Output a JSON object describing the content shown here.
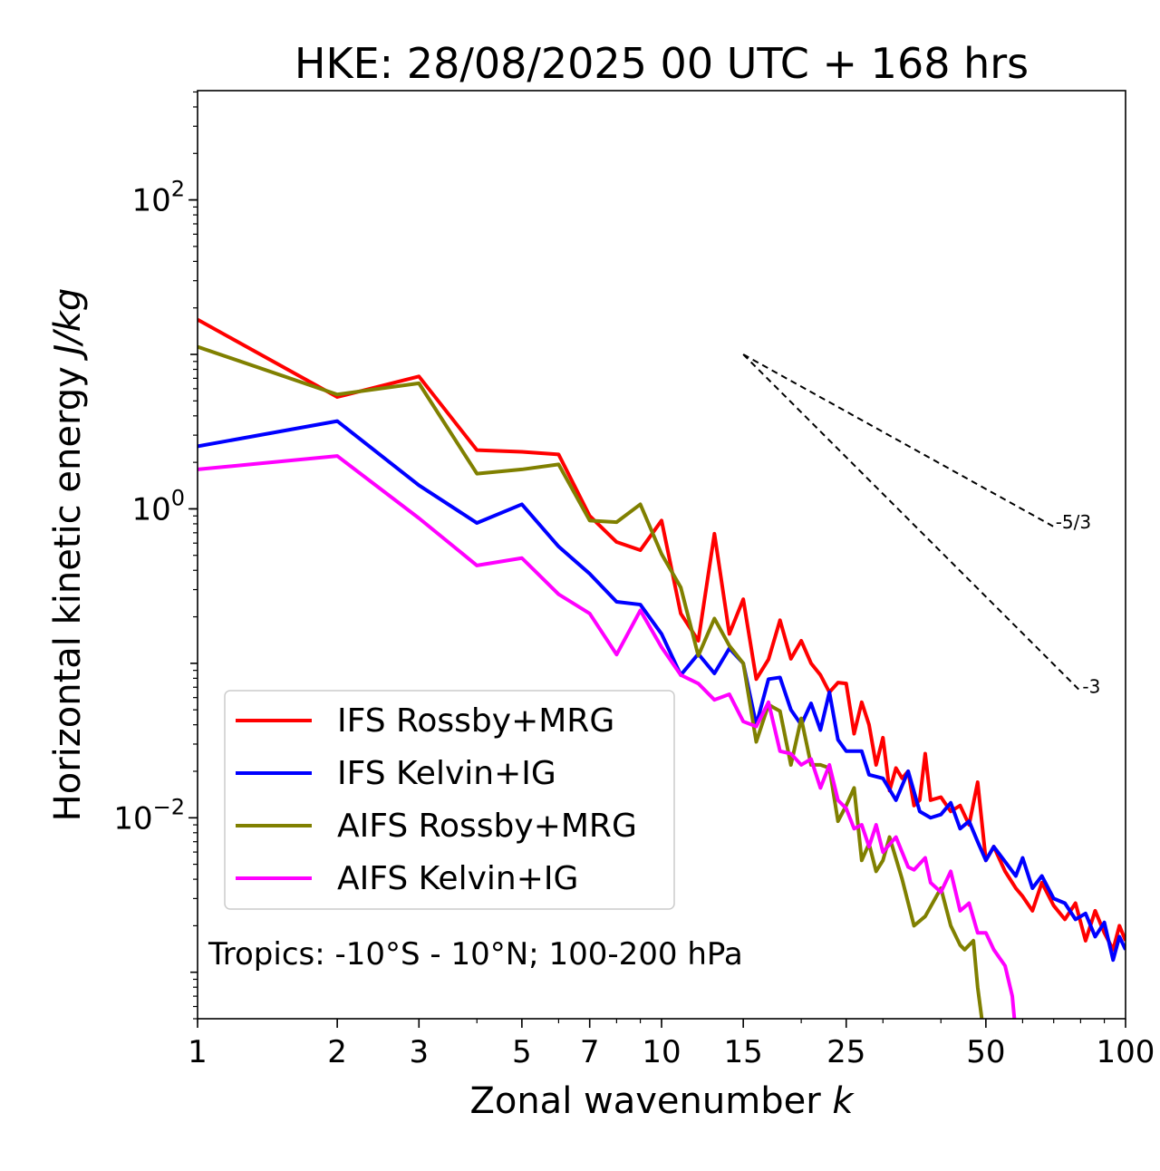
{
  "chart_data": {
    "type": "line",
    "title": "HKE: 28/08/2025 00 UTC + 168 hrs",
    "xlabel": "Zonal wavenumber",
    "xlabel_var": "k",
    "ylabel": "Horizontal kinetic energy",
    "ylabel_units": "J/kg",
    "xscale": "log",
    "yscale": "log",
    "xlim": [
      1,
      100
    ],
    "ylim": [
      0.0005,
      510
    ],
    "x_ticks": [
      1,
      2,
      3,
      5,
      7,
      10,
      15,
      25,
      50,
      100
    ],
    "x_tick_labels": [
      "1",
      "2",
      "3",
      "5",
      "7",
      "10",
      "15",
      "25",
      "50",
      "100"
    ],
    "y_ticks": [
      {
        "value": 100,
        "base": "10",
        "exp": "2"
      },
      {
        "value": 1,
        "base": "10",
        "exp": "0"
      },
      {
        "value": 0.01,
        "base": "10",
        "exp": "−2"
      }
    ],
    "legend_position": "lower-left",
    "annotation": "Tropics: -10°S - 10°N; 100-200 hPa",
    "series": [
      {
        "name": "IFS Rossby+MRG",
        "color": "#ff0000",
        "points": [
          [
            1,
            16.8
          ],
          [
            2,
            5.3
          ],
          [
            3,
            7.2
          ],
          [
            4,
            2.4
          ],
          [
            5,
            2.34
          ],
          [
            6,
            2.25
          ],
          [
            7,
            0.9
          ],
          [
            8,
            0.61
          ],
          [
            9,
            0.54
          ],
          [
            10,
            0.84
          ],
          [
            11,
            0.21
          ],
          [
            12,
            0.14
          ],
          [
            13,
            0.69
          ],
          [
            14,
            0.155
          ],
          [
            15,
            0.26
          ],
          [
            16,
            0.079
          ],
          [
            17,
            0.106
          ],
          [
            18,
            0.19
          ],
          [
            19,
            0.107
          ],
          [
            20,
            0.14
          ],
          [
            21,
            0.1
          ],
          [
            22,
            0.084
          ],
          [
            23,
            0.065
          ],
          [
            24,
            0.075
          ],
          [
            25,
            0.074
          ],
          [
            26,
            0.035
          ],
          [
            27,
            0.056
          ],
          [
            28,
            0.04
          ],
          [
            29,
            0.022
          ],
          [
            30,
            0.033
          ],
          [
            31,
            0.015
          ],
          [
            32,
            0.021
          ],
          [
            33,
            0.018
          ],
          [
            34,
            0.02
          ],
          [
            35,
            0.012
          ],
          [
            36,
            0.013
          ],
          [
            37,
            0.026
          ],
          [
            38,
            0.013
          ],
          [
            40,
            0.0136
          ],
          [
            42,
            0.011
          ],
          [
            44,
            0.012
          ],
          [
            46,
            0.009
          ],
          [
            48,
            0.017
          ],
          [
            50,
            0.0053
          ],
          [
            52,
            0.0065
          ],
          [
            55,
            0.0045
          ],
          [
            58,
            0.0035
          ],
          [
            60,
            0.0031
          ],
          [
            63,
            0.0025
          ],
          [
            66,
            0.0038
          ],
          [
            70,
            0.0027
          ],
          [
            74,
            0.0022
          ],
          [
            78,
            0.0028
          ],
          [
            82,
            0.0016
          ],
          [
            86,
            0.0025
          ],
          [
            90,
            0.0018
          ],
          [
            94,
            0.0014
          ],
          [
            97,
            0.002
          ],
          [
            100,
            0.0016
          ]
        ]
      },
      {
        "name": "IFS Kelvin+IG",
        "color": "#0000ff",
        "points": [
          [
            1,
            2.54
          ],
          [
            2,
            3.7
          ],
          [
            3,
            1.42
          ],
          [
            4,
            0.81
          ],
          [
            5,
            1.07
          ],
          [
            6,
            0.57
          ],
          [
            7,
            0.38
          ],
          [
            8,
            0.25
          ],
          [
            9,
            0.24
          ],
          [
            10,
            0.155
          ],
          [
            11,
            0.084
          ],
          [
            12,
            0.115
          ],
          [
            13,
            0.086
          ],
          [
            14,
            0.125
          ],
          [
            15,
            0.1
          ],
          [
            16,
            0.04
          ],
          [
            17,
            0.079
          ],
          [
            18,
            0.081
          ],
          [
            19,
            0.05
          ],
          [
            20,
            0.04
          ],
          [
            21,
            0.055
          ],
          [
            22,
            0.037
          ],
          [
            23,
            0.065
          ],
          [
            24,
            0.032
          ],
          [
            25,
            0.027
          ],
          [
            27,
            0.027
          ],
          [
            28,
            0.019
          ],
          [
            30,
            0.018
          ],
          [
            32,
            0.013
          ],
          [
            34,
            0.02
          ],
          [
            36,
            0.011
          ],
          [
            38,
            0.01
          ],
          [
            40,
            0.0105
          ],
          [
            42,
            0.0125
          ],
          [
            44,
            0.0085
          ],
          [
            46,
            0.0095
          ],
          [
            48,
            0.007
          ],
          [
            50,
            0.0053
          ],
          [
            52,
            0.0065
          ],
          [
            55,
            0.0052
          ],
          [
            58,
            0.0042
          ],
          [
            60,
            0.0055
          ],
          [
            63,
            0.0035
          ],
          [
            66,
            0.0042
          ],
          [
            70,
            0.003
          ],
          [
            74,
            0.0028
          ],
          [
            78,
            0.0022
          ],
          [
            82,
            0.0024
          ],
          [
            86,
            0.0017
          ],
          [
            90,
            0.0021
          ],
          [
            94,
            0.0012
          ],
          [
            97,
            0.0017
          ],
          [
            100,
            0.0014
          ]
        ]
      },
      {
        "name": "AIFS Rossby+MRG",
        "color": "#808000",
        "points": [
          [
            1,
            11.2
          ],
          [
            2,
            5.5
          ],
          [
            3,
            6.5
          ],
          [
            4,
            1.69
          ],
          [
            5,
            1.8
          ],
          [
            6,
            1.94
          ],
          [
            7,
            0.84
          ],
          [
            8,
            0.82
          ],
          [
            9,
            1.07
          ],
          [
            10,
            0.51
          ],
          [
            11,
            0.31
          ],
          [
            12,
            0.112
          ],
          [
            13,
            0.195
          ],
          [
            14,
            0.13
          ],
          [
            15,
            0.1
          ],
          [
            16,
            0.031
          ],
          [
            17,
            0.054
          ],
          [
            18,
            0.049
          ],
          [
            19,
            0.022
          ],
          [
            20,
            0.044
          ],
          [
            21,
            0.022
          ],
          [
            22,
            0.022
          ],
          [
            23,
            0.021
          ],
          [
            24,
            0.0095
          ],
          [
            25,
            0.012
          ],
          [
            26,
            0.0156
          ],
          [
            27,
            0.0053
          ],
          [
            28,
            0.0068
          ],
          [
            29,
            0.0045
          ],
          [
            30,
            0.0053
          ],
          [
            31,
            0.0075
          ],
          [
            33,
            0.004
          ],
          [
            35,
            0.002
          ],
          [
            37,
            0.0023
          ],
          [
            40,
            0.0035
          ],
          [
            42,
            0.002
          ],
          [
            44,
            0.0015
          ],
          [
            45,
            0.0014
          ],
          [
            47,
            0.0016
          ],
          [
            48,
            0.0008
          ],
          [
            49,
            0.0005
          ]
        ]
      },
      {
        "name": "AIFS Kelvin+IG",
        "color": "#ff00ff",
        "points": [
          [
            1,
            1.8
          ],
          [
            2,
            2.2
          ],
          [
            3,
            0.87
          ],
          [
            4,
            0.43
          ],
          [
            5,
            0.48
          ],
          [
            6,
            0.28
          ],
          [
            7,
            0.21
          ],
          [
            8,
            0.114
          ],
          [
            9,
            0.22
          ],
          [
            10,
            0.127
          ],
          [
            11,
            0.084
          ],
          [
            12,
            0.074
          ],
          [
            13,
            0.058
          ],
          [
            14,
            0.063
          ],
          [
            15,
            0.042
          ],
          [
            16,
            0.039
          ],
          [
            17,
            0.056
          ],
          [
            18,
            0.027
          ],
          [
            19,
            0.026
          ],
          [
            20,
            0.022
          ],
          [
            21,
            0.024
          ],
          [
            22,
            0.0156
          ],
          [
            23,
            0.022
          ],
          [
            24,
            0.013
          ],
          [
            25,
            0.0115
          ],
          [
            26,
            0.0085
          ],
          [
            27,
            0.009
          ],
          [
            28,
            0.0065
          ],
          [
            29,
            0.009
          ],
          [
            30,
            0.006
          ],
          [
            32,
            0.0075
          ],
          [
            34,
            0.0048
          ],
          [
            35,
            0.0046
          ],
          [
            37,
            0.0055
          ],
          [
            38,
            0.0038
          ],
          [
            40,
            0.0033
          ],
          [
            42,
            0.0045
          ],
          [
            44,
            0.0025
          ],
          [
            46,
            0.0028
          ],
          [
            48,
            0.0018
          ],
          [
            50,
            0.0018
          ],
          [
            52,
            0.0014
          ],
          [
            55,
            0.0011
          ],
          [
            57,
            0.0007
          ],
          [
            58,
            0.0004
          ]
        ]
      }
    ],
    "reference_lines": [
      {
        "label": "-5/3",
        "slope": -1.6667,
        "k_start": 15,
        "k_end": 70,
        "y_start": 10
      },
      {
        "label": "-3",
        "slope": -3,
        "k_start": 15,
        "k_end": 80,
        "y_start": 10
      }
    ]
  }
}
